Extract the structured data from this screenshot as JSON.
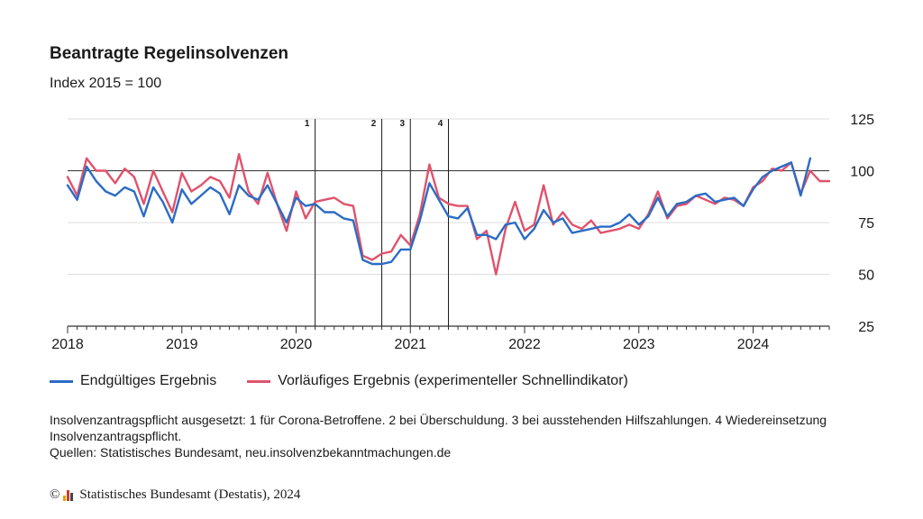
{
  "header": {
    "title": "Beantragte Regelinsolvenzen",
    "subtitle": "Index 2015 = 100"
  },
  "colors": {
    "final": "#2b6cc4",
    "preliminary": "#e0526c",
    "axis": "#333333",
    "grid": "#dcdcdc"
  },
  "chart_data": {
    "type": "line",
    "title": "Beantragte Regelinsolvenzen",
    "subtitle": "Index 2015 = 100",
    "x_axis": {
      "type": "date",
      "min": "2018-01",
      "max": "2024-09",
      "tick_labels": [
        "2018",
        "2019",
        "2020",
        "2021",
        "2022",
        "2023",
        "2024"
      ]
    },
    "y_axis": {
      "position": "right",
      "min": 25,
      "max": 125,
      "ticks": [
        25,
        50,
        75,
        100,
        125
      ]
    },
    "reference_line": 100,
    "grid": "horizontal",
    "legend_position": "bottom-left",
    "events": [
      {
        "label": "1",
        "date": "2020-03"
      },
      {
        "label": "2",
        "date": "2020-10"
      },
      {
        "label": "3",
        "date": "2021-01"
      },
      {
        "label": "4",
        "date": "2021-05"
      }
    ],
    "series": [
      {
        "name": "Endgültiges Ergebnis",
        "color": "#2b6cc4",
        "start": "2018-01",
        "values": [
          93,
          86,
          102,
          95,
          90,
          88,
          92,
          90,
          78,
          92,
          85,
          75,
          91,
          84,
          88,
          92,
          89,
          79,
          93,
          88,
          86,
          93,
          84,
          75,
          87,
          83,
          84,
          80,
          80,
          77,
          76,
          57,
          55,
          55,
          56,
          62,
          62,
          76,
          94,
          86,
          78,
          77,
          82,
          69,
          69,
          67,
          74,
          75,
          67,
          72,
          81,
          75,
          77,
          70,
          71,
          72,
          73,
          73,
          75,
          79,
          74,
          78,
          87,
          78,
          84,
          85,
          88,
          89,
          85,
          86,
          87,
          83,
          91,
          97,
          100,
          102,
          104,
          88,
          106
        ]
      },
      {
        "name": "Vorläufiges Ergebnis (experimenteller Schnellindikator)",
        "color": "#e0526c",
        "start": "2018-01",
        "values": [
          97,
          88,
          106,
          100,
          100,
          94,
          101,
          97,
          84,
          100,
          90,
          80,
          99,
          90,
          93,
          97,
          95,
          87,
          108,
          90,
          84,
          99,
          84,
          71,
          90,
          77,
          85,
          86,
          87,
          84,
          83,
          59,
          57,
          60,
          61,
          69,
          64,
          79,
          103,
          87,
          84,
          83,
          83,
          67,
          71,
          50,
          72,
          85,
          71,
          74,
          93,
          74,
          80,
          74,
          72,
          76,
          70,
          71,
          72,
          74,
          72,
          79,
          90,
          77,
          83,
          84,
          88,
          86,
          84,
          87,
          86,
          83,
          92,
          95,
          101,
          100,
          104,
          89,
          100,
          95,
          95
        ]
      }
    ]
  },
  "legend": [
    {
      "label": "Endgültiges Ergebnis",
      "color": "#2b6cc4"
    },
    {
      "label": "Vorläufiges Ergebnis (experimenteller Schnellindikator)",
      "color": "#e0526c"
    }
  ],
  "notes": {
    "line1": "Insolvenzantragspflicht ausgesetzt: 1 für Corona-Betroffene. 2 bei Überschuldung. 3 bei ausstehenden Hilfszahlungen. 4 Wiedereinsetzung Insolvenzantragspflicht.",
    "line2": "Quellen: Statistisches Bundesamt, neu.insolvenzbekanntmachungen.de"
  },
  "footer": {
    "copyright_symbol": "©",
    "text": "Statistisches Bundesamt (Destatis), 2024",
    "logo_colors": [
      "#e0a100",
      "#d13a2a",
      "#444444"
    ]
  }
}
